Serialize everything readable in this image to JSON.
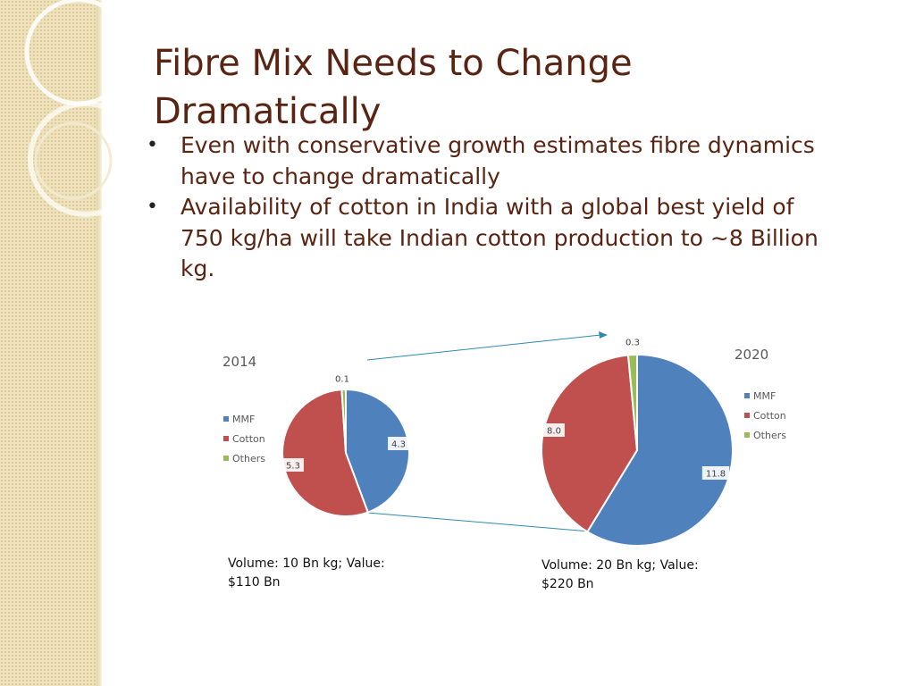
{
  "slide": {
    "title_line1": "Fibre Mix Needs to Change",
    "title_line2": "Dramatically",
    "bullets": [
      {
        "lines": [
          "Even with conservative growth estimates fibre dynamics",
          "have to change dramatically"
        ]
      },
      {
        "lines": [
          "Availability of cotton in India with a global best yield of",
          "750 kg/ha will take Indian cotton production to ~8 Billion",
          "kg."
        ]
      }
    ],
    "captions": [
      {
        "lines": [
          "Volume: 10 Bn kg; Value:",
          "$110 Bn"
        ]
      },
      {
        "lines": [
          "Volume: 20 Bn kg; Value:",
          "$220 Bn"
        ]
      }
    ]
  },
  "colors": {
    "title": "#5a2413",
    "MMF": "#4f81bd",
    "Cotton": "#c0504d",
    "Others": "#9bbb59",
    "connector": "#2e8bb0"
  },
  "chart_data": [
    {
      "type": "pie",
      "title": "2014",
      "categories": [
        "MMF",
        "Cotton",
        "Others"
      ],
      "values": [
        4.3,
        5.3,
        0.1
      ],
      "legend": "left"
    },
    {
      "type": "pie",
      "title": "2020",
      "categories": [
        "MMF",
        "Cotton",
        "Others"
      ],
      "values": [
        11.8,
        8.0,
        0.3
      ],
      "legend": "right"
    }
  ]
}
